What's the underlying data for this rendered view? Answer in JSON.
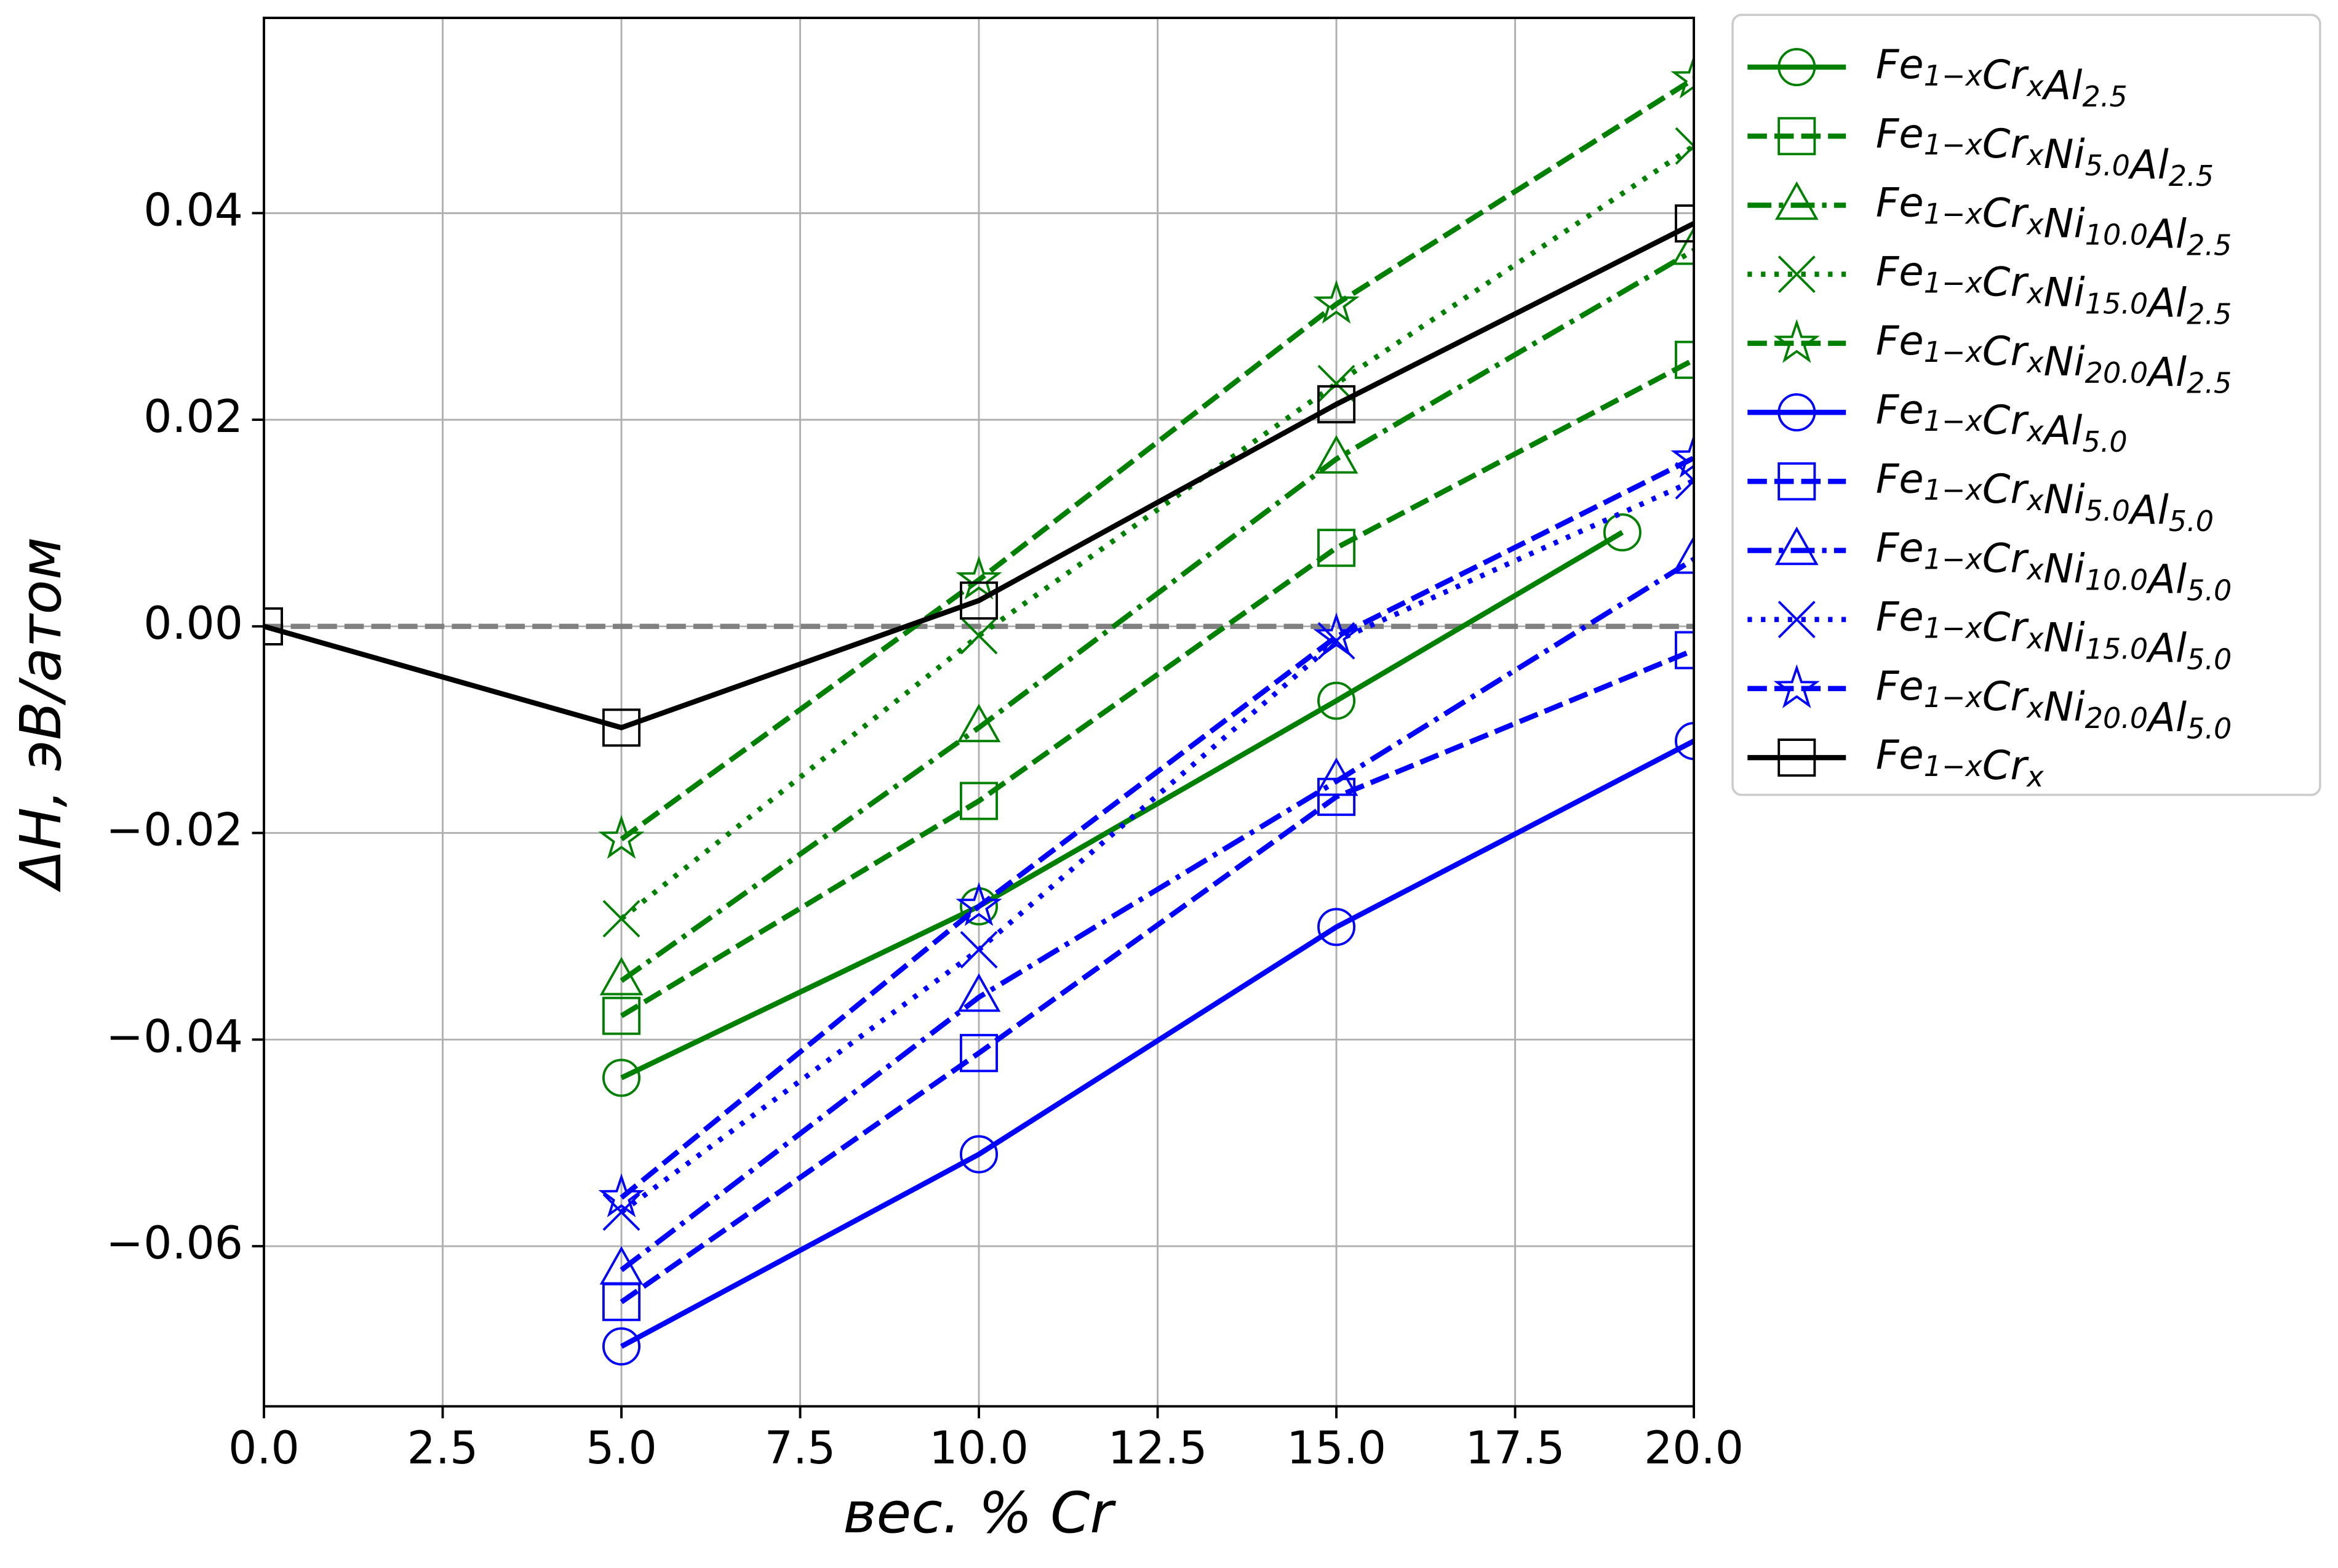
{
  "chart_data": {
    "type": "line",
    "xlabel": "вес. % Cr",
    "ylabel": "ΔH, эВ/атом",
    "xlim": [
      0,
      20
    ],
    "ylim": [
      -0.0755,
      0.0589
    ],
    "xticks": [
      {
        "value": 0,
        "label": "0.0"
      },
      {
        "value": 2.5,
        "label": "2.5"
      },
      {
        "value": 5,
        "label": "5.0"
      },
      {
        "value": 7.5,
        "label": "7.5"
      },
      {
        "value": 10,
        "label": "10.0"
      },
      {
        "value": 12.5,
        "label": "12.5"
      },
      {
        "value": 15,
        "label": "15.0"
      },
      {
        "value": 17.5,
        "label": "17.5"
      },
      {
        "value": 20,
        "label": "20.0"
      }
    ],
    "yticks": [
      {
        "value": -0.06,
        "label": "−0.06"
      },
      {
        "value": -0.04,
        "label": "−0.04"
      },
      {
        "value": -0.02,
        "label": "−0.02"
      },
      {
        "value": 0,
        "label": "0.00"
      },
      {
        "value": 0.02,
        "label": "0.02"
      },
      {
        "value": 0.04,
        "label": "0.04"
      }
    ],
    "grid": true,
    "legend": "outside-upper-right",
    "hlines": [
      {
        "value": 0,
        "color": "#808080",
        "linestyle": "dashed"
      }
    ],
    "series": [
      {
        "name": "Fe1−xCrxAl2.5",
        "color": "#008000",
        "linestyle": "solid",
        "marker": "circle",
        "x": [
          5,
          10,
          15,
          19
        ],
        "values": [
          -0.0437,
          -0.0271,
          -0.0072,
          0.0091
        ]
      },
      {
        "name": "Fe1−xCrxNi5.0Al2.5",
        "color": "#008000",
        "linestyle": "dashed",
        "marker": "square",
        "x": [
          5,
          10,
          15,
          20
        ],
        "values": [
          -0.0377,
          -0.0169,
          0.0076,
          0.0258
        ]
      },
      {
        "name": "Fe1−xCrxNi10.0Al2.5",
        "color": "#008000",
        "linestyle": "dashdot",
        "marker": "triangle",
        "x": [
          5,
          10,
          15,
          20
        ],
        "values": [
          -0.0343,
          -0.0098,
          0.0162,
          0.0364
        ]
      },
      {
        "name": "Fe1−xCrxNi15.0Al2.5",
        "color": "#008000",
        "linestyle": "dotted",
        "marker": "x",
        "x": [
          5,
          10,
          15,
          20
        ],
        "values": [
          -0.0283,
          -0.0009,
          0.0235,
          0.0465
        ]
      },
      {
        "name": "Fe1−xCrxNi20.0Al2.5",
        "color": "#008000",
        "linestyle": "dashed",
        "marker": "star",
        "x": [
          5,
          10,
          15,
          20
        ],
        "values": [
          -0.0206,
          0.0045,
          0.0312,
          0.053
        ]
      },
      {
        "name": "Fe1−xCrxAl5.0",
        "color": "#0000ff",
        "linestyle": "solid",
        "marker": "circle",
        "x": [
          5,
          10,
          15,
          20
        ],
        "values": [
          -0.0697,
          -0.0511,
          -0.0291,
          -0.0111
        ]
      },
      {
        "name": "Fe1−xCrxNi5.0Al5.0",
        "color": "#0000ff",
        "linestyle": "dashed",
        "marker": "square",
        "x": [
          5,
          10,
          15,
          20
        ],
        "values": [
          -0.0654,
          -0.0413,
          -0.0165,
          -0.0023
        ]
      },
      {
        "name": "Fe1−xCrxNi10.0Al5.0",
        "color": "#0000ff",
        "linestyle": "dashdot",
        "marker": "triangle",
        "x": [
          5,
          10,
          15,
          20
        ],
        "values": [
          -0.0623,
          -0.0359,
          -0.015,
          0.0065
        ]
      },
      {
        "name": "Fe1−xCrxNi15.0Al5.0",
        "color": "#0000ff",
        "linestyle": "dotted",
        "marker": "x",
        "x": [
          5,
          10,
          15,
          20
        ],
        "values": [
          -0.0567,
          -0.0313,
          -0.0014,
          0.0141
        ]
      },
      {
        "name": "Fe1−xCrxNi20.0Al5.0",
        "color": "#0000ff",
        "linestyle": "dashed",
        "marker": "star",
        "x": [
          5,
          10,
          15,
          20
        ],
        "values": [
          -0.0553,
          -0.0271,
          -0.001,
          0.0163
        ]
      },
      {
        "name": "Fe1−xCrx",
        "color": "#000000",
        "linestyle": "solid",
        "marker": "square",
        "x": [
          0,
          5,
          10,
          15,
          20
        ],
        "values": [
          0,
          -0.0098,
          0.0025,
          0.0215,
          0.039
        ]
      }
    ]
  }
}
